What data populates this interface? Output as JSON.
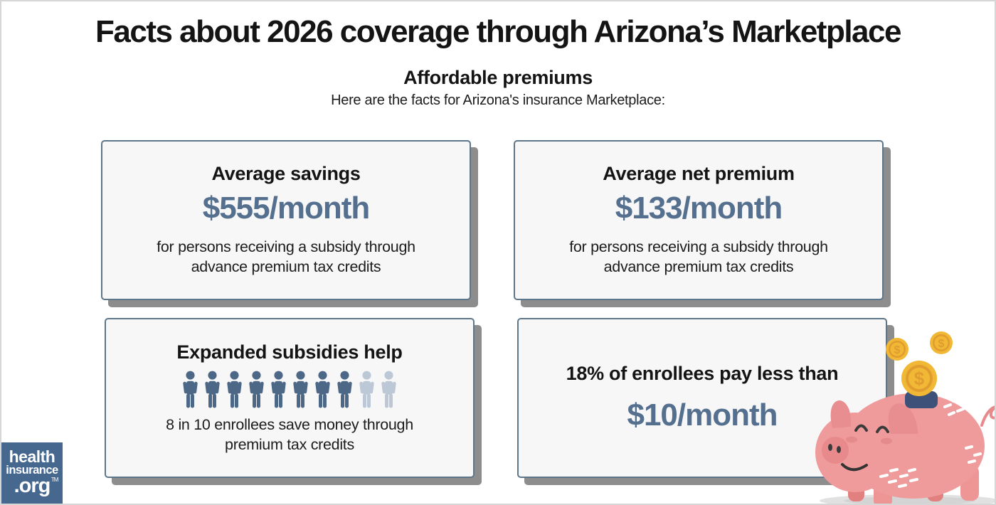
{
  "page": {
    "title": "Facts about 2026 coverage through Arizona’s Marketplace",
    "section_heading": "Affordable premiums",
    "section_subheading": "Here are the facts for Arizona's insurance Marketplace:"
  },
  "cards": [
    {
      "heading": "Average savings",
      "amount": "$555/month",
      "description": "for persons receiving a subsidy through advance premium tax credits"
    },
    {
      "heading": "Average net premium",
      "amount": "$133/month",
      "description": "for persons receiving a subsidy through advance premium tax credits"
    },
    {
      "heading": "Expanded subsidies help",
      "pictograph": {
        "total": 10,
        "highlighted": 8
      },
      "description": "8 in 10 enrollees save money through premium tax credits"
    },
    {
      "heading": "18% of enrollees pay less than",
      "amount": "$10/month"
    }
  ],
  "logo": {
    "line1": "health",
    "line2": "insurance",
    "line3": ".org",
    "trademark": "TM"
  },
  "illustration": {
    "name": "piggy-bank-with-coins",
    "coin_symbol": "$"
  },
  "colors": {
    "accent_amount": "#54708E",
    "card_border": "#5D7689",
    "card_background": "#F7F7F8",
    "card_shadow": "#8D8D8D",
    "person_highlight": "#4C6886",
    "person_muted": "#BCC8D6",
    "logo_background": "#47688E",
    "pig_pink": "#F09B9B",
    "pig_dark_pink": "#E8898B",
    "coin_gold": "#F1B835",
    "coin_orange": "#E09C2F",
    "slot_navy": "#3E5178"
  }
}
